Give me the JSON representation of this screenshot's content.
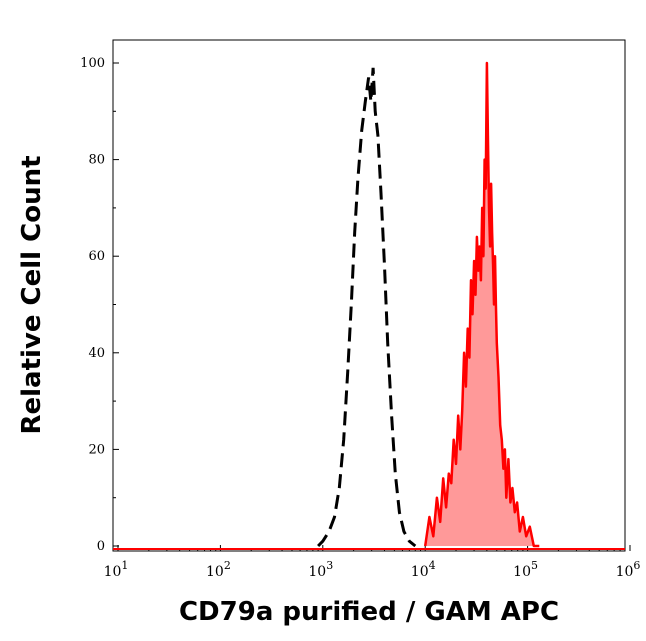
{
  "chart_data": {
    "type": "area",
    "xlabel": "CD79a purified / GAM APC",
    "ylabel": "Relative Cell Count",
    "x_scale": "log",
    "xlim": [
      10,
      1000000
    ],
    "ylim": [
      0,
      105
    ],
    "x_ticks": [
      {
        "value": 10,
        "base": "10",
        "exp": "1"
      },
      {
        "value": 100,
        "base": "10",
        "exp": "2"
      },
      {
        "value": 1000,
        "base": "10",
        "exp": "3"
      },
      {
        "value": 10000,
        "base": "10",
        "exp": "4"
      },
      {
        "value": 100000,
        "base": "10",
        "exp": "5"
      },
      {
        "value": 1000000,
        "base": "10",
        "exp": "6"
      }
    ],
    "y_ticks": [
      {
        "value": 0,
        "label": "0"
      },
      {
        "value": 20,
        "label": "20"
      },
      {
        "value": 40,
        "label": "40"
      },
      {
        "value": 60,
        "label": "60"
      },
      {
        "value": 80,
        "label": "80"
      },
      {
        "value": 100,
        "label": "100"
      }
    ],
    "grid": false,
    "series": [
      {
        "style": "dashed",
        "color": "#000000",
        "filled": false,
        "points": [
          [
            900,
            0
          ],
          [
            1000,
            1
          ],
          [
            1150,
            3
          ],
          [
            1300,
            6
          ],
          [
            1450,
            12
          ],
          [
            1600,
            22
          ],
          [
            1750,
            36
          ],
          [
            1900,
            50
          ],
          [
            2050,
            65
          ],
          [
            2200,
            76
          ],
          [
            2400,
            86
          ],
          [
            2600,
            92
          ],
          [
            2800,
            97
          ],
          [
            2950,
            92
          ],
          [
            3100,
            99
          ],
          [
            3250,
            90
          ],
          [
            3450,
            85
          ],
          [
            3700,
            73
          ],
          [
            4000,
            58
          ],
          [
            4300,
            42
          ],
          [
            4700,
            27
          ],
          [
            5100,
            15
          ],
          [
            5600,
            7
          ],
          [
            6200,
            3
          ],
          [
            7000,
            1
          ],
          [
            8000,
            0
          ]
        ]
      },
      {
        "style": "solid",
        "color": "#ff0000",
        "fill_color": "#ff9999",
        "filled": true,
        "points": [
          [
            10000,
            0
          ],
          [
            11000,
            6
          ],
          [
            12000,
            2
          ],
          [
            13000,
            10
          ],
          [
            14000,
            5
          ],
          [
            15000,
            14
          ],
          [
            16000,
            8
          ],
          [
            17000,
            15
          ],
          [
            18000,
            13
          ],
          [
            19000,
            22
          ],
          [
            20000,
            17
          ],
          [
            21000,
            27
          ],
          [
            22000,
            20
          ],
          [
            23000,
            28
          ],
          [
            24000,
            40
          ],
          [
            25000,
            33
          ],
          [
            26000,
            45
          ],
          [
            27000,
            39
          ],
          [
            28000,
            55
          ],
          [
            29000,
            48
          ],
          [
            30000,
            59
          ],
          [
            31000,
            52
          ],
          [
            32000,
            64
          ],
          [
            33000,
            57
          ],
          [
            34000,
            62
          ],
          [
            35000,
            55
          ],
          [
            36000,
            70
          ],
          [
            37000,
            60
          ],
          [
            38000,
            80
          ],
          [
            39000,
            74
          ],
          [
            40000,
            100
          ],
          [
            41000,
            85
          ],
          [
            42000,
            70
          ],
          [
            43000,
            62
          ],
          [
            44000,
            75
          ],
          [
            45000,
            65
          ],
          [
            46000,
            58
          ],
          [
            47000,
            50
          ],
          [
            48000,
            60
          ],
          [
            49000,
            50
          ],
          [
            50000,
            42
          ],
          [
            52000,
            35
          ],
          [
            54000,
            25
          ],
          [
            56000,
            22
          ],
          [
            58000,
            16
          ],
          [
            60000,
            20
          ],
          [
            62000,
            10
          ],
          [
            65000,
            18
          ],
          [
            68000,
            9
          ],
          [
            71000,
            12
          ],
          [
            75000,
            7
          ],
          [
            79000,
            9
          ],
          [
            84000,
            3
          ],
          [
            90000,
            6
          ],
          [
            97000,
            2
          ],
          [
            105000,
            4
          ],
          [
            115000,
            0
          ],
          [
            130000,
            0
          ]
        ]
      }
    ]
  }
}
